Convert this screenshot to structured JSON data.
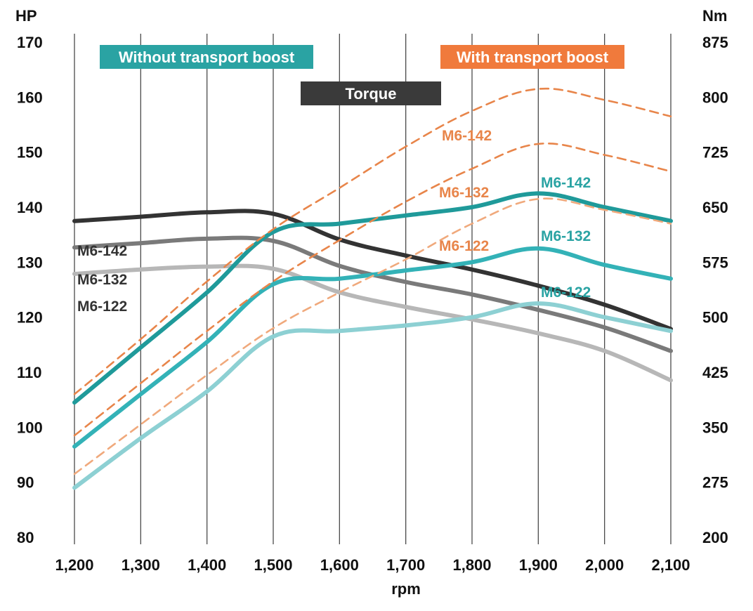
{
  "chart_data": {
    "type": "line",
    "x": [
      1200,
      1300,
      1400,
      1500,
      1600,
      1700,
      1800,
      1900,
      2000,
      2100
    ],
    "x_tick_labels": [
      "1,200",
      "1,300",
      "1,400",
      "1,500",
      "1,600",
      "1,700",
      "1,800",
      "1,900",
      "2,000",
      "2,100"
    ],
    "xlabel": "rpm",
    "ylabel_left": "HP",
    "ylabel_right": "Nm",
    "ylim_left": [
      80,
      170
    ],
    "ylim_right": [
      200,
      875
    ],
    "y_ticks_left": [
      "80",
      "90",
      "100",
      "110",
      "120",
      "130",
      "140",
      "150",
      "160",
      "170"
    ],
    "y_ticks_right": [
      "200",
      "275",
      "350",
      "425",
      "500",
      "575",
      "650",
      "725",
      "800",
      "875"
    ],
    "grid": "vertical",
    "legend_badges": [
      {
        "text": "Without transport boost",
        "color": "#2aa3a3"
      },
      {
        "text": "Torque",
        "color": "#3a3a3a"
      },
      {
        "text": "With transport boost",
        "color": "#f07a3c"
      }
    ],
    "series": [
      {
        "name": "M6-142",
        "group": "With transport boost",
        "axis": "left",
        "style": "dashed",
        "color": "#e8854a",
        "values": [
          106,
          116,
          126.5,
          136,
          143.5,
          151,
          157.5,
          161.5,
          159.5,
          156.5
        ]
      },
      {
        "name": "M6-132",
        "group": "With transport boost",
        "axis": "left",
        "style": "dashed",
        "color": "#e8854a",
        "values": [
          98.5,
          108,
          117.5,
          126.5,
          134,
          141,
          147,
          151.5,
          149.5,
          146.5
        ]
      },
      {
        "name": "M6-122",
        "group": "With transport boost",
        "axis": "left",
        "style": "dashed",
        "color": "#f0a97c",
        "values": [
          91.5,
          100.5,
          109.5,
          118,
          124.5,
          130.5,
          137,
          141.5,
          139.5,
          137
        ]
      },
      {
        "name": "M6-142",
        "group": "Without transport boost",
        "axis": "left",
        "style": "solid",
        "color": "#1f9a9a",
        "values": [
          104.5,
          114.5,
          124.5,
          135.5,
          137,
          138.5,
          140,
          142.5,
          140,
          137.5
        ]
      },
      {
        "name": "M6-132",
        "group": "Without transport boost",
        "axis": "left",
        "style": "solid",
        "color": "#33b2b7",
        "values": [
          96.5,
          106,
          115.5,
          126,
          127,
          128.5,
          130,
          132.5,
          129.5,
          127
        ]
      },
      {
        "name": "M6-122",
        "group": "Without transport boost",
        "axis": "left",
        "style": "solid",
        "color": "#8dd0d3",
        "values": [
          89,
          98,
          106.5,
          116.5,
          117.5,
          118.5,
          120,
          122.5,
          120,
          117.5
        ]
      },
      {
        "name": "M6-142",
        "group": "Torque",
        "axis": "right",
        "style": "solid",
        "color": "#333333",
        "values": [
          631,
          637,
          643,
          641,
          606,
          584,
          565,
          543,
          517,
          484
        ]
      },
      {
        "name": "M6-132",
        "group": "Torque",
        "axis": "right",
        "style": "solid",
        "color": "#7a7a7a",
        "values": [
          595,
          601,
          607,
          604,
          570,
          548,
          531,
          510,
          486,
          454
        ]
      },
      {
        "name": "M6-122",
        "group": "Torque",
        "axis": "right",
        "style": "solid",
        "color": "#b7b7b7",
        "values": [
          559,
          565,
          569,
          566,
          534,
          514,
          497,
          478,
          454,
          414
        ]
      }
    ],
    "series_labels": [
      {
        "text": "M6-142",
        "color": "#e8854a"
      },
      {
        "text": "M6-132",
        "color": "#e8854a"
      },
      {
        "text": "M6-122",
        "color": "#e8854a"
      },
      {
        "text": "M6-142",
        "color": "#2aa3a3"
      },
      {
        "text": "M6-132",
        "color": "#2aa3a3"
      },
      {
        "text": "M6-122",
        "color": "#2aa3a3"
      },
      {
        "text": "M6-142",
        "color": "#333333"
      },
      {
        "text": "M6-132",
        "color": "#333333"
      },
      {
        "text": "M6-122",
        "color": "#333333"
      }
    ]
  }
}
